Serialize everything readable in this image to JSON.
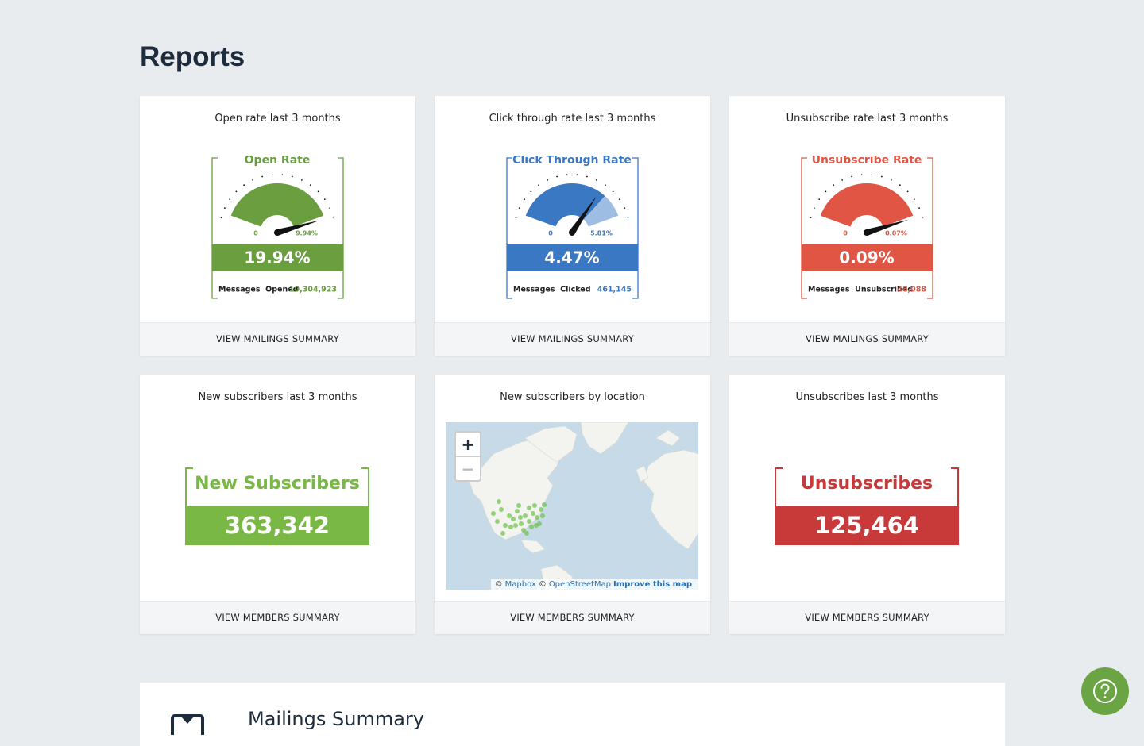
{
  "header": {
    "title": "Reports"
  },
  "gauge_cards": [
    {
      "title": "Open rate last 3 months",
      "gauge_label": "Open Rate",
      "min": "0",
      "max": "9.94%",
      "value": "19.94%",
      "stat_label": "Messages  Opened",
      "stat_value": "10,304,923",
      "link": "VIEW MAILINGS SUMMARY"
    },
    {
      "title": "Click through rate last 3 months",
      "gauge_label": "Click Through Rate",
      "min": "0",
      "max": "5.81%",
      "value": "4.47%",
      "stat_label": "Messages  Clicked",
      "stat_value": "461,145",
      "link": "VIEW MAILINGS SUMMARY"
    },
    {
      "title": "Unsubscribe rate last 3 months",
      "gauge_label": "Unsubscribe Rate",
      "min": "0",
      "max": "0.07%",
      "value": "0.09%",
      "stat_label": "Messages  Unsubscribed",
      "stat_value": "48,088",
      "link": "VIEW MAILINGS SUMMARY"
    }
  ],
  "subscribers_card": {
    "title": "New subscribers last 3 months",
    "label": "New Subscribers",
    "value": "363,342",
    "link": "VIEW MEMBERS SUMMARY"
  },
  "map_card": {
    "title": "New subscribers by location",
    "zoom_in": "+",
    "zoom_out": "−",
    "attribution": [
      "©",
      "Mapbox",
      "©",
      "OpenStreetMap",
      "Improve this map"
    ],
    "link": "VIEW MEMBERS SUMMARY"
  },
  "unsubscribes_card": {
    "title": "Unsubscribes last 3 months",
    "label": "Unsubscribes",
    "value": "125,464",
    "link": "VIEW MEMBERS SUMMARY"
  },
  "mailings_summary": {
    "title": "Mailings Summary"
  }
}
